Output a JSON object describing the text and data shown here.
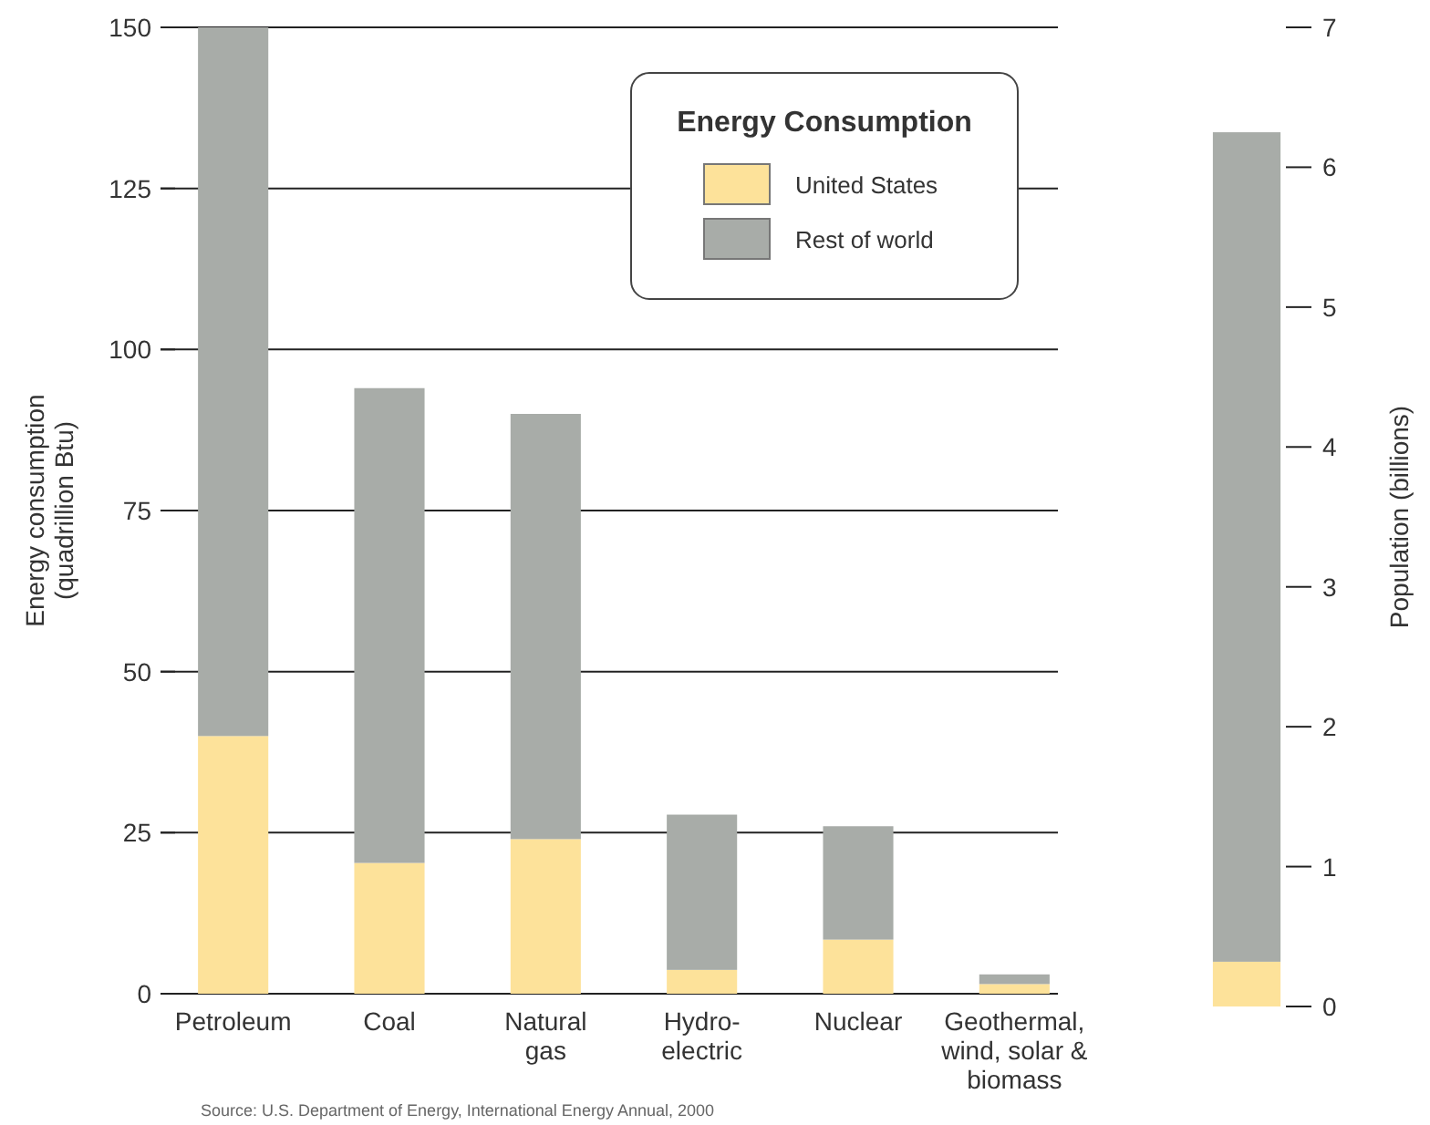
{
  "chart_data": [
    {
      "type": "bar",
      "stacked": true,
      "categories": [
        "Petroleum",
        "Coal",
        "Natural\ngas",
        "Hydro-\nelectric",
        "Nuclear",
        "Geothermal,\nwind, solar &\nbiomass"
      ],
      "series": [
        {
          "name": "United States",
          "color": "#fde29a",
          "values": [
            40,
            20.3,
            24,
            3.7,
            8.4,
            1.5
          ]
        },
        {
          "name": "Rest of world",
          "color": "#a8aca8",
          "values": [
            110,
            73.7,
            66,
            24.1,
            17.6,
            1.5
          ]
        }
      ],
      "ylabel": "Energy consumption\n(quadrillion Btu)",
      "ylim": [
        0,
        150
      ],
      "yticks": [
        0,
        25,
        50,
        75,
        100,
        125,
        150
      ],
      "grid": "y",
      "legend": "top right",
      "legend_title": "Energy Consumption",
      "annotations": [
        "Source: U.S. Department of Energy, International Energy Annual, 2000"
      ]
    },
    {
      "type": "bar",
      "stacked": true,
      "categories": [
        null
      ],
      "series": [
        {
          "color": "#fde29a",
          "values": [
            0.32
          ]
        },
        {
          "color": "#a8aca8",
          "values": [
            5.93
          ]
        }
      ],
      "ylabel": "Population (billions)",
      "ylim": [
        0,
        7
      ],
      "yticks": [
        0,
        1,
        2,
        3,
        4,
        5,
        6,
        7
      ]
    }
  ]
}
